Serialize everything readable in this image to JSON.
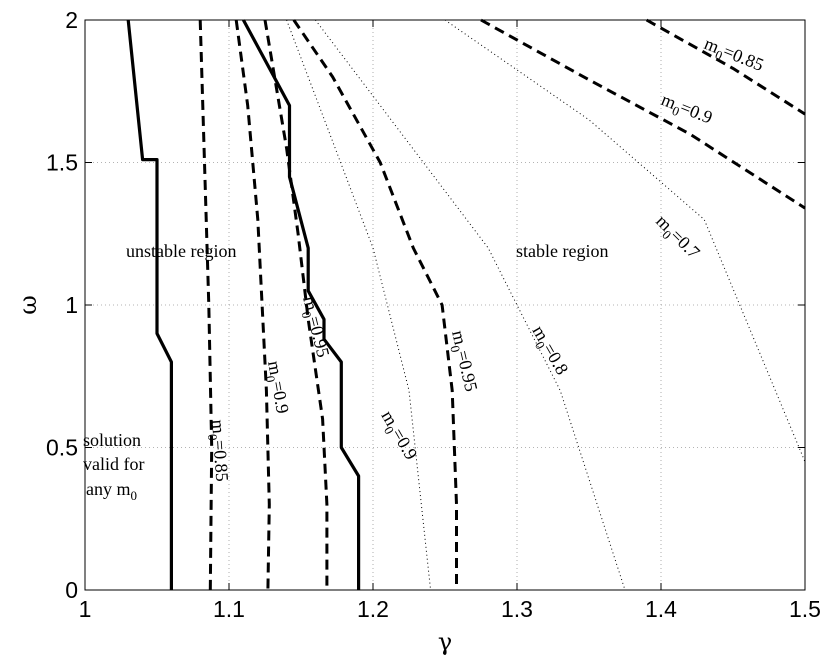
{
  "chart_data": {
    "type": "line",
    "title": "",
    "xlabel": "γ",
    "ylabel": "ω",
    "xlim": [
      1,
      1.5
    ],
    "ylim": [
      0,
      2
    ],
    "grid": true,
    "x_ticks": [
      "1",
      "1.1",
      "1.2",
      "1.3",
      "1.4",
      "1.5"
    ],
    "y_ticks": [
      "0",
      "0.5",
      "1",
      "1.5",
      "2"
    ],
    "series": [
      {
        "style": "solid-thick",
        "points": [
          [
            1.03,
            2
          ],
          [
            1.04,
            1.51
          ],
          [
            1.05,
            1.51
          ],
          [
            1.05,
            0.9
          ],
          [
            1.06,
            0.8
          ],
          [
            1.06,
            0
          ]
        ]
      },
      {
        "style": "dashed-thick",
        "points": [
          [
            1.08,
            2
          ],
          [
            1.083,
            1.5
          ],
          [
            1.086,
            1
          ],
          [
            1.088,
            0.5
          ],
          [
            1.087,
            0
          ]
        ]
      },
      {
        "style": "dashed-thick",
        "points": [
          [
            1.105,
            2
          ],
          [
            1.113,
            1.7
          ],
          [
            1.12,
            1.3
          ],
          [
            1.126,
            0.7
          ],
          [
            1.128,
            0.3
          ],
          [
            1.127,
            0
          ]
        ]
      },
      {
        "style": "solid-thick",
        "points": [
          [
            1.11,
            2
          ],
          [
            1.142,
            1.7
          ],
          [
            1.142,
            1.45
          ],
          [
            1.155,
            1.2
          ],
          [
            1.155,
            1.05
          ],
          [
            1.166,
            0.95
          ],
          [
            1.166,
            0.88
          ],
          [
            1.178,
            0.8
          ],
          [
            1.178,
            0.5
          ],
          [
            1.19,
            0.4
          ],
          [
            1.19,
            0
          ]
        ]
      },
      {
        "style": "dashed-thick",
        "points": [
          [
            1.125,
            2
          ],
          [
            1.14,
            1.55
          ],
          [
            1.148,
            1.25
          ],
          [
            1.155,
            0.95
          ],
          [
            1.165,
            0.6
          ],
          [
            1.168,
            0.3
          ],
          [
            1.168,
            0
          ]
        ]
      },
      {
        "style": "dashed-thick",
        "points": [
          [
            1.145,
            2
          ],
          [
            1.172,
            1.8
          ],
          [
            1.205,
            1.5
          ],
          [
            1.228,
            1.2
          ],
          [
            1.248,
            1.0
          ],
          [
            1.255,
            0.7
          ],
          [
            1.258,
            0.3
          ],
          [
            1.258,
            0
          ]
        ]
      },
      {
        "style": "dotted-thin",
        "points": [
          [
            1.14,
            2
          ],
          [
            1.17,
            1.6
          ],
          [
            1.2,
            1.2
          ],
          [
            1.225,
            0.7
          ],
          [
            1.24,
            0
          ]
        ]
      },
      {
        "style": "dotted-thin",
        "points": [
          [
            1.16,
            2
          ],
          [
            1.22,
            1.6
          ],
          [
            1.28,
            1.2
          ],
          [
            1.33,
            0.7
          ],
          [
            1.375,
            0
          ]
        ]
      },
      {
        "style": "dotted-thin",
        "points": [
          [
            1.25,
            2
          ],
          [
            1.35,
            1.65
          ],
          [
            1.43,
            1.3
          ],
          [
            1.5,
            0.45
          ]
        ]
      },
      {
        "style": "dashed-thick",
        "points": [
          [
            1.275,
            2
          ],
          [
            1.35,
            1.79
          ],
          [
            1.42,
            1.6
          ],
          [
            1.5,
            1.34
          ]
        ]
      },
      {
        "style": "dashed-thick",
        "points": [
          [
            1.39,
            2
          ],
          [
            1.45,
            1.83
          ],
          [
            1.5,
            1.67
          ]
        ]
      }
    ],
    "annotations": [
      {
        "text": "unstable region"
      },
      {
        "text": "stable region"
      },
      {
        "lines": [
          "solution",
          "valid for",
          "any m"
        ],
        "sub": "0"
      },
      {
        "main": "m",
        "sub": "0",
        "tail": "=0.85"
      },
      {
        "main": "m",
        "sub": "0",
        "tail": "=0.9"
      },
      {
        "main": "m",
        "sub": "0",
        "tail": "=0.95"
      },
      {
        "main": "m",
        "sub": "0",
        "tail": "=0.9"
      },
      {
        "main": "m",
        "sub": "0",
        "tail": "=0.95"
      },
      {
        "main": "m",
        "sub": "0",
        "tail": "=0.8"
      },
      {
        "main": "m",
        "sub": "0",
        "tail": "=0.7"
      },
      {
        "main": "m",
        "sub": "0",
        "tail": "=0.9"
      },
      {
        "main": "m",
        "sub": "0",
        "tail": "=0.85"
      }
    ]
  }
}
